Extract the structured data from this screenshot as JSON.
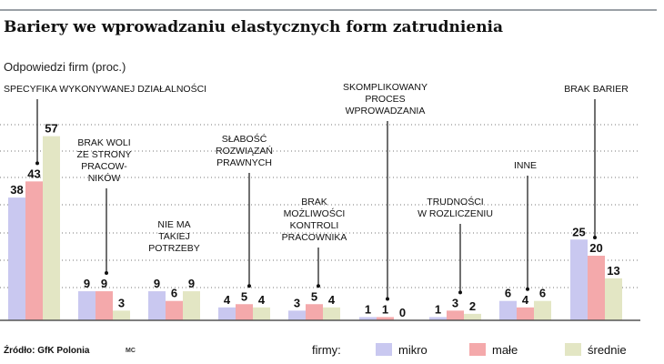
{
  "header": {
    "title": "Bariery we wprowadzaniu elastycznych form zatrudnienia",
    "subtitle": "Odpowiedzi firm (proc.)"
  },
  "footer": {
    "source": "Źródło: GfK Polonia",
    "author": "MC"
  },
  "legend": {
    "label": "firmy:",
    "items": [
      {
        "name": "mikro",
        "color": "#c9c8f0"
      },
      {
        "name": "małe",
        "color": "#f4a9ab"
      },
      {
        "name": "średnie",
        "color": "#e3e6c4"
      }
    ]
  },
  "chart_data": {
    "type": "bar",
    "categories": [
      [
        "SPECYFIKA WYKONYWANEJ DZIAŁALNOŚCI"
      ],
      [
        "BRAK WOLI",
        "ZE STRONY",
        "PRACOW-",
        "NIKÓW"
      ],
      [
        "NIE MA",
        "TAKIEJ",
        "POTRZEBY"
      ],
      [
        "SŁABOŚĆ",
        "ROZWIĄZAŃ",
        "PRAWNYCH"
      ],
      [
        "BRAK",
        "MOŻLIWOŚCI",
        "KONTROLI",
        "PRACOWNIKA"
      ],
      [
        "SKOMPLIKOWANY",
        "PROCES",
        "WPROWADZANIA"
      ],
      [
        "TRUDNOŚCI",
        "W ROZLICZENIU"
      ],
      [
        "INNE"
      ],
      [
        "BRAK BARIER"
      ]
    ],
    "series": [
      {
        "name": "mikro",
        "color": "#c9c8f0",
        "values": [
          38,
          9,
          9,
          4,
          3,
          1,
          1,
          6,
          25
        ]
      },
      {
        "name": "małe",
        "color": "#f4a9ab",
        "values": [
          43,
          9,
          6,
          5,
          5,
          1,
          3,
          4,
          20
        ]
      },
      {
        "name": "średnie",
        "color": "#e3e6c4",
        "values": [
          57,
          3,
          9,
          4,
          4,
          0,
          2,
          6,
          13
        ]
      }
    ],
    "ylim": [
      0,
      60
    ],
    "grid": true,
    "legend_position": "bottom-right",
    "xlabel": "",
    "ylabel": ""
  }
}
